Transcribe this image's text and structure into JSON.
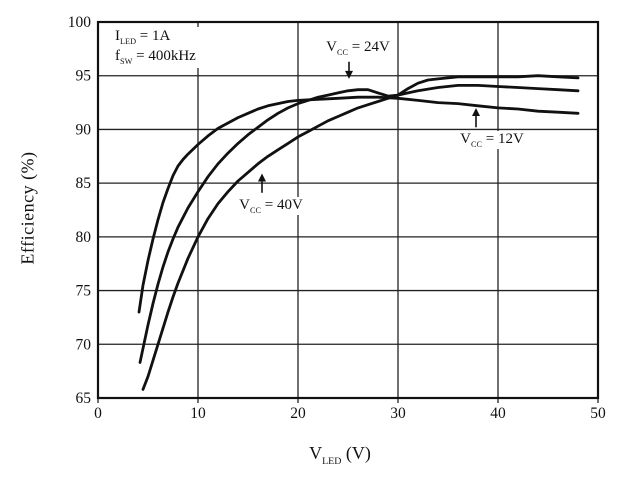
{
  "figure": {
    "background": "#ffffff",
    "line_color": "#111111",
    "grid_color": "#222222"
  },
  "chart_data": {
    "type": "line",
    "title": "",
    "ylabel": "Efficiency (%)",
    "xlabel": {
      "base": "V",
      "sub": "LED",
      "rest": " (V)"
    },
    "xlim": [
      0,
      50
    ],
    "ylim": [
      65,
      100
    ],
    "xticks": [
      0,
      10,
      20,
      30,
      40,
      50
    ],
    "yticks": [
      65,
      70,
      75,
      80,
      85,
      90,
      95,
      100
    ],
    "grid": true,
    "legend_position": "none",
    "conditions": [
      {
        "base": "I",
        "sub": "LED",
        "rest": " = 1A"
      },
      {
        "base": "f",
        "sub": "SW",
        "rest": " = 400kHz"
      }
    ],
    "series": [
      {
        "id": "vcc-12v",
        "name": "Vcc = 12V",
        "x": [
          4.1,
          4.5,
          5,
          5.5,
          6,
          6.5,
          7,
          7.5,
          8,
          8.5,
          9,
          10,
          11,
          12,
          13,
          14,
          15,
          16,
          17,
          18,
          19,
          20,
          22,
          24,
          26,
          28,
          30,
          32,
          34,
          36,
          38,
          40,
          42,
          44,
          46,
          48
        ],
        "y": [
          73,
          75.5,
          77.8,
          79.8,
          81.6,
          83.2,
          84.5,
          85.7,
          86.6,
          87.2,
          87.7,
          88.6,
          89.4,
          90.1,
          90.6,
          91.1,
          91.5,
          91.9,
          92.2,
          92.4,
          92.6,
          92.7,
          92.8,
          92.9,
          93,
          93,
          92.9,
          92.7,
          92.5,
          92.4,
          92.2,
          92,
          91.9,
          91.7,
          91.6,
          91.5
        ]
      },
      {
        "id": "vcc-24v",
        "name": "Vcc = 24V",
        "x": [
          4.2,
          5,
          5.5,
          6,
          6.5,
          7,
          7.5,
          8,
          9,
          10,
          11,
          12,
          13,
          14,
          15,
          16,
          17,
          18,
          19,
          20,
          21,
          22,
          23,
          24,
          25,
          26,
          27,
          28,
          29,
          30,
          31,
          32,
          34,
          36,
          38,
          40,
          42,
          44,
          46,
          48
        ],
        "y": [
          68.3,
          71.8,
          73.8,
          75.6,
          77.2,
          78.6,
          79.8,
          80.9,
          82.7,
          84.2,
          85.6,
          86.8,
          87.8,
          88.7,
          89.5,
          90.2,
          90.9,
          91.5,
          92,
          92.4,
          92.7,
          93,
          93.2,
          93.4,
          93.6,
          93.7,
          93.7,
          93.4,
          93.1,
          93.2,
          93.4,
          93.6,
          93.9,
          94.1,
          94.1,
          94,
          93.9,
          93.8,
          93.7,
          93.6
        ]
      },
      {
        "id": "vcc-40v",
        "name": "Vcc = 40V",
        "x": [
          4.5,
          5,
          5.5,
          6,
          6.5,
          7,
          7.5,
          8,
          9,
          10,
          11,
          12,
          13,
          14,
          15,
          16,
          17,
          18,
          19,
          20,
          21,
          22,
          23,
          24,
          25,
          26,
          27,
          28,
          29,
          30,
          31,
          32,
          33,
          34,
          36,
          38,
          40,
          42,
          44,
          46,
          48
        ],
        "y": [
          65.8,
          67,
          68.5,
          70,
          71.5,
          73,
          74.4,
          75.7,
          78,
          80,
          81.7,
          83.1,
          84.2,
          85.2,
          86,
          86.8,
          87.5,
          88.1,
          88.7,
          89.3,
          89.8,
          90.3,
          90.8,
          91.2,
          91.6,
          92,
          92.3,
          92.6,
          92.9,
          93.2,
          93.8,
          94.3,
          94.6,
          94.7,
          94.9,
          94.9,
          94.9,
          94.9,
          95,
          94.9,
          94.8
        ]
      }
    ],
    "annotations": [
      {
        "series": "vcc-24v",
        "base": "V",
        "sub": "CC",
        "rest": " = 24V",
        "text_x": 26.0,
        "text_y": 97.6,
        "arrow_from_x": 25.1,
        "arrow_from_y": 96.3,
        "arrow_to_x": 25.1,
        "arrow_to_y": 94.7
      },
      {
        "series": "vcc-12v",
        "base": "V",
        "sub": "CC",
        "rest": " = 12V",
        "text_x": 39.4,
        "text_y": 89.0,
        "arrow_from_x": 37.8,
        "arrow_from_y": 90.2,
        "arrow_to_x": 37.8,
        "arrow_to_y": 92.0
      },
      {
        "series": "vcc-40v",
        "base": "V",
        "sub": "CC",
        "rest": " = 40V",
        "text_x": 17.3,
        "text_y": 82.9,
        "arrow_from_x": 16.4,
        "arrow_from_y": 84.1,
        "arrow_to_x": 16.4,
        "arrow_to_y": 85.9
      }
    ]
  }
}
